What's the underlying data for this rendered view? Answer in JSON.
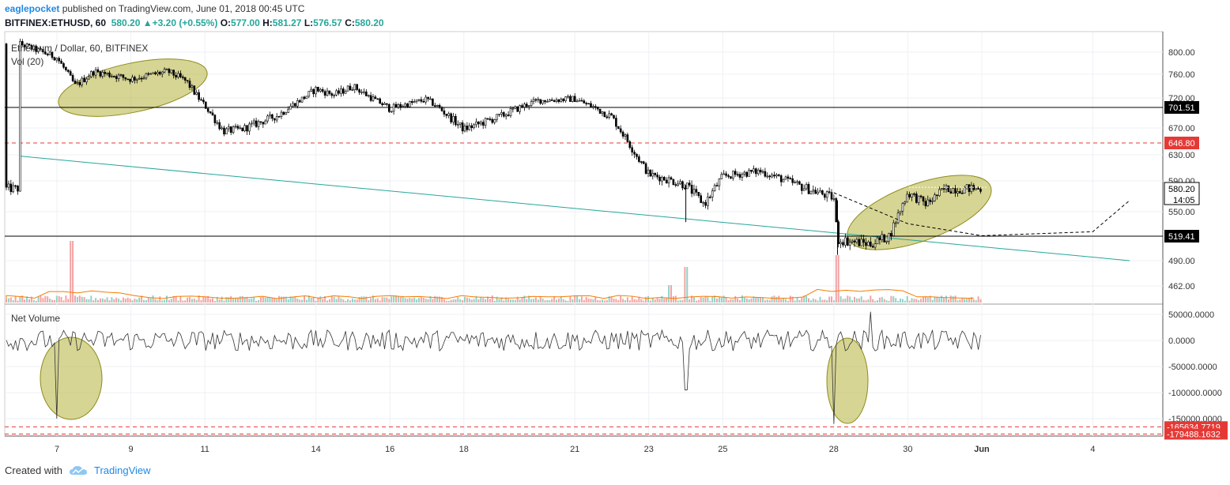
{
  "header": {
    "author": "eaglepocket",
    "published": "published on TradingView.com, June 01, 2018 00:45 UTC",
    "symbol": "BITFINEX:ETHUSD, 60",
    "last": "580.20",
    "change": "+3.20 (+0.55%)",
    "o_label": "O:",
    "o": "577.00",
    "h_label": "H:",
    "h": "581.27",
    "l_label": "L:",
    "l": "576.57",
    "c_label": "C:",
    "c": "580.20"
  },
  "footer": {
    "created": "Created with",
    "brand": "TradingView"
  },
  "colors": {
    "up": "#26a69a",
    "down": "#ef5350",
    "accent": "#1e88e5",
    "highlight": "#b5b33d",
    "trend": "#26a69a"
  },
  "chart_data": [
    {
      "type": "candlestick",
      "title": "Ethereum / Dollar, 60, BITFINEX",
      "indicator_label": "Vol (20)",
      "yticks": [
        800,
        760,
        720,
        670,
        630,
        590,
        550,
        490,
        462
      ],
      "ytick_labels": [
        "800.00",
        "760.00",
        "720.00",
        "670.00",
        "630.00",
        "590.00",
        "550.00",
        "490.00",
        "462.00"
      ],
      "horizontal_levels": [
        {
          "value": 701.51,
          "label": "701.51",
          "style": "solid"
        },
        {
          "value": 646.8,
          "label": "646.80",
          "style": "dashed-red"
        },
        {
          "value": 519.41,
          "label": "519.41",
          "style": "solid"
        }
      ],
      "last_price": {
        "value": 580.2,
        "label": "580.20",
        "countdown": "14:05"
      },
      "xtick_labels": [
        "7",
        "9",
        "11",
        "14",
        "16",
        "18",
        "21",
        "23",
        "25",
        "28",
        "30",
        "Jun",
        "4"
      ],
      "price_path": [
        [
          "May 6",
          815
        ],
        [
          "May 7",
          790
        ],
        [
          "May 7.5",
          740
        ],
        [
          "May 8",
          765
        ],
        [
          "May 9",
          752
        ],
        [
          "May 10",
          765
        ],
        [
          "May 10.5",
          748
        ],
        [
          "May 11",
          705
        ],
        [
          "May 11.5",
          665
        ],
        [
          "May 12",
          668
        ],
        [
          "May 13",
          690
        ],
        [
          "May 14",
          735
        ],
        [
          "May 14.5",
          725
        ],
        [
          "May 15",
          740
        ],
        [
          "May 16",
          700
        ],
        [
          "May 17",
          717
        ],
        [
          "May 18",
          668
        ],
        [
          "May 19",
          688
        ],
        [
          "May 20",
          715
        ],
        [
          "May 21",
          718
        ],
        [
          "May 22",
          687
        ],
        [
          "May 23",
          600
        ],
        [
          "May 24",
          585
        ],
        [
          "May 24.5",
          560
        ],
        [
          "May 25",
          597
        ],
        [
          "May 26",
          605
        ],
        [
          "May 27",
          585
        ],
        [
          "May 28",
          568
        ],
        [
          "May 28.1",
          515
        ],
        [
          "May 29",
          510
        ],
        [
          "May 29.5",
          520
        ],
        [
          "May 30",
          575
        ],
        [
          "May 30.5",
          560
        ],
        [
          "May 31",
          580
        ],
        [
          "Jun 1",
          580.2
        ]
      ],
      "projection": [
        [
          "May 28",
          575
        ],
        [
          "May 30",
          535
        ],
        [
          "Jun 1",
          520
        ],
        [
          "Jun 4",
          525
        ],
        [
          "Jun 5",
          565
        ]
      ],
      "trendline": {
        "from": [
          "May 6",
          628
        ],
        "to": [
          "Jun 5",
          490
        ]
      }
    },
    {
      "type": "line",
      "title": "Net Volume",
      "yticks": [
        50000,
        0,
        -50000,
        -100000,
        -150000
      ],
      "ytick_labels": [
        "50000.0000",
        "0.0000",
        "-50000.0000",
        "-100000.0000",
        "-150000.0000"
      ],
      "markers": [
        {
          "value": -165634.7719,
          "label": "-165634.7719"
        },
        {
          "value": -179488.1632,
          "label": "-179488.1632"
        }
      ],
      "notable_values": [
        {
          "x": "May 7",
          "y": -150000
        },
        {
          "x": "May 24",
          "y": -95000
        },
        {
          "x": "May 28",
          "y": -160000
        },
        {
          "x": "May 29",
          "y": 55000
        }
      ]
    }
  ]
}
